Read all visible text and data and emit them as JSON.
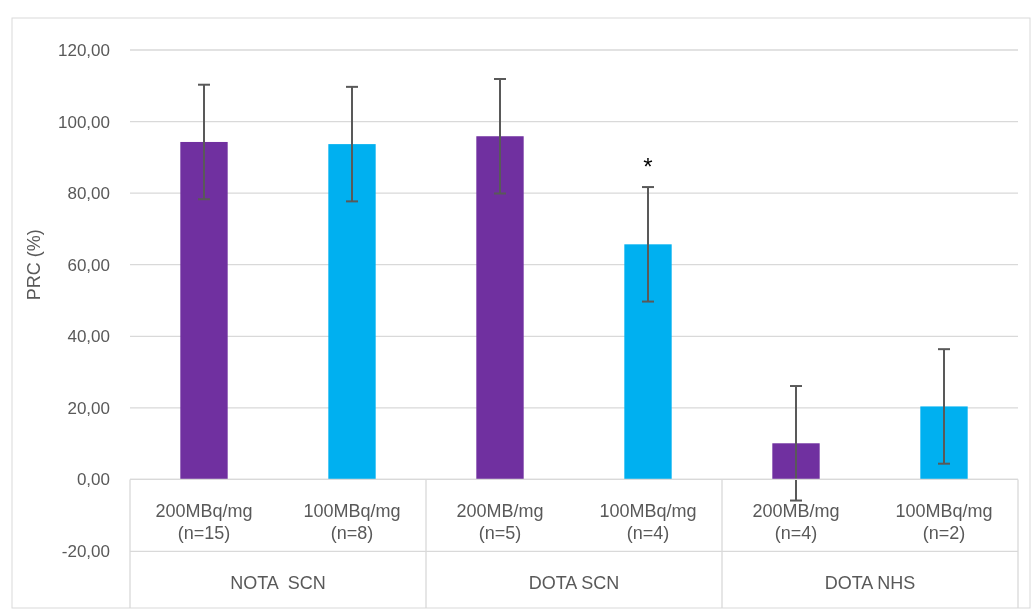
{
  "chart_data": {
    "type": "bar",
    "ylabel": "PRC (%)",
    "categories": [
      "200MBq/mg (n=15)",
      "100MBq/mg (n=8)",
      "200MB/mg (n=5)",
      "100MBq/mg (n=4)",
      "200MB/mg (n=4)",
      "100MBq/mg (n=2)"
    ],
    "values": [
      94.3,
      93.7,
      95.9,
      65.7,
      10.1,
      20.4
    ],
    "colors": [
      "#7030a0",
      "#00b0f0",
      "#7030a0",
      "#00b0f0",
      "#7030a0",
      "#00b0f0"
    ],
    "errors": [
      16,
      16,
      16,
      16,
      16,
      16
    ],
    "ylim": [
      -20,
      120
    ],
    "yticks": [
      {
        "value": -20,
        "label": "-20,00"
      },
      {
        "value": 0,
        "label": "0,00"
      },
      {
        "value": 20,
        "label": "20,00"
      },
      {
        "value": 40,
        "label": "40,00"
      },
      {
        "value": 60,
        "label": "60,00"
      },
      {
        "value": 80,
        "label": "80,00"
      },
      {
        "value": 100,
        "label": "100,00"
      },
      {
        "value": 120,
        "label": "120,00"
      }
    ],
    "grid": "y",
    "annotations": [
      "NOTA  SCN",
      "DOTA SCN",
      "DOTA NHS",
      "*"
    ]
  }
}
